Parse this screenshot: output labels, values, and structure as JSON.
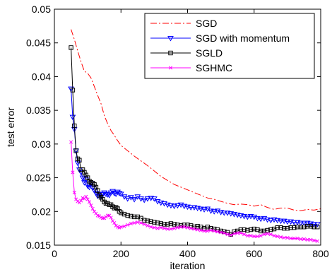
{
  "chart_data": {
    "type": "line",
    "title": "",
    "xlabel": "iteration",
    "ylabel": "test error",
    "xlim": [
      0,
      800
    ],
    "ylim": [
      0.015,
      0.05
    ],
    "xticks": [
      0,
      200,
      400,
      600,
      800
    ],
    "xtick_labels": [
      "0",
      "200",
      "400",
      "600",
      "800"
    ],
    "yticks": [
      0.015,
      0.02,
      0.025,
      0.03,
      0.035,
      0.04,
      0.045,
      0.05
    ],
    "ytick_labels": [
      "0.015",
      "0.02",
      "0.025",
      "0.03",
      "0.035",
      "0.04",
      "0.045",
      "0.05"
    ],
    "grid": false,
    "legend_position": "top-right",
    "series": [
      {
        "name": "SGD",
        "color": "#ff0000",
        "linestyle": "dashdot",
        "marker": "none",
        "x": [
          50,
          60,
          70,
          80,
          90,
          100,
          110,
          120,
          130,
          140,
          150,
          160,
          170,
          180,
          190,
          200,
          220,
          240,
          260,
          280,
          300,
          320,
          340,
          360,
          380,
          400,
          420,
          440,
          460,
          480,
          500,
          520,
          540,
          560,
          580,
          600,
          620,
          640,
          660,
          680,
          700,
          720,
          740,
          760,
          780,
          800
        ],
        "y": [
          0.047,
          0.0455,
          0.0438,
          0.0422,
          0.0408,
          0.0405,
          0.0398,
          0.0385,
          0.0372,
          0.036,
          0.0342,
          0.033,
          0.032,
          0.0313,
          0.0305,
          0.0298,
          0.029,
          0.0282,
          0.0275,
          0.0268,
          0.026,
          0.0252,
          0.0246,
          0.024,
          0.0236,
          0.0232,
          0.0228,
          0.0224,
          0.022,
          0.0218,
          0.0215,
          0.0212,
          0.021,
          0.0211,
          0.021,
          0.0208,
          0.021,
          0.0206,
          0.0203,
          0.0205,
          0.0205,
          0.0202,
          0.0201,
          0.0203,
          0.0202,
          0.0204
        ]
      },
      {
        "name": "SGD with momentum",
        "color": "#0000ff",
        "linestyle": "solid",
        "marker": "triangle-down",
        "x": [
          50,
          55,
          60,
          65,
          70,
          75,
          80,
          85,
          90,
          95,
          100,
          105,
          110,
          115,
          120,
          125,
          130,
          135,
          140,
          145,
          150,
          155,
          160,
          165,
          170,
          175,
          180,
          185,
          190,
          195,
          200,
          210,
          220,
          230,
          240,
          250,
          260,
          270,
          280,
          290,
          300,
          310,
          320,
          330,
          340,
          350,
          360,
          370,
          380,
          390,
          400,
          410,
          420,
          430,
          440,
          450,
          460,
          470,
          480,
          490,
          500,
          510,
          520,
          530,
          540,
          550,
          560,
          570,
          580,
          590,
          600,
          610,
          620,
          630,
          640,
          650,
          660,
          670,
          680,
          690,
          700,
          710,
          720,
          730,
          740,
          750,
          760,
          770,
          780,
          790
        ],
        "y": [
          0.0382,
          0.034,
          0.0322,
          0.029,
          0.0272,
          0.0262,
          0.0258,
          0.025,
          0.0243,
          0.0247,
          0.0238,
          0.0236,
          0.0242,
          0.0235,
          0.0231,
          0.0227,
          0.0223,
          0.0226,
          0.0222,
          0.0225,
          0.0228,
          0.0226,
          0.0225,
          0.0224,
          0.0228,
          0.023,
          0.0227,
          0.0226,
          0.0229,
          0.0227,
          0.0226,
          0.0222,
          0.0219,
          0.0221,
          0.0218,
          0.0222,
          0.0219,
          0.0217,
          0.0219,
          0.022,
          0.0219,
          0.0215,
          0.0213,
          0.0212,
          0.021,
          0.0209,
          0.0208,
          0.0209,
          0.021,
          0.0208,
          0.0207,
          0.0206,
          0.0206,
          0.0205,
          0.0204,
          0.0203,
          0.0204,
          0.0201,
          0.02,
          0.0201,
          0.0199,
          0.0198,
          0.0198,
          0.0197,
          0.0196,
          0.0195,
          0.0194,
          0.0193,
          0.0192,
          0.0193,
          0.0192,
          0.019,
          0.0189,
          0.019,
          0.0188,
          0.0187,
          0.0188,
          0.0187,
          0.0186,
          0.0186,
          0.0185,
          0.0185,
          0.0184,
          0.0184,
          0.0183,
          0.0183,
          0.0183,
          0.0182,
          0.0181,
          0.0181
        ]
      },
      {
        "name": "SGLD",
        "color": "#000000",
        "linestyle": "solid",
        "marker": "square",
        "x": [
          50,
          55,
          60,
          65,
          70,
          75,
          80,
          85,
          90,
          95,
          100,
          105,
          110,
          115,
          120,
          125,
          130,
          135,
          140,
          145,
          150,
          155,
          160,
          165,
          170,
          175,
          180,
          185,
          190,
          195,
          200,
          210,
          220,
          230,
          240,
          250,
          260,
          270,
          280,
          290,
          300,
          310,
          320,
          330,
          340,
          350,
          360,
          370,
          380,
          390,
          400,
          410,
          420,
          430,
          440,
          450,
          460,
          470,
          480,
          490,
          500,
          510,
          520,
          530,
          540,
          550,
          560,
          570,
          580,
          590,
          600,
          610,
          620,
          630,
          640,
          650,
          660,
          670,
          680,
          690,
          700,
          710,
          720,
          730,
          740,
          750,
          760,
          770,
          780,
          790
        ],
        "y": [
          0.0443,
          0.038,
          0.0327,
          0.029,
          0.0278,
          0.0276,
          0.0262,
          0.0262,
          0.0258,
          0.0254,
          0.025,
          0.0245,
          0.0243,
          0.0242,
          0.024,
          0.0236,
          0.0231,
          0.0224,
          0.0221,
          0.0218,
          0.0214,
          0.0212,
          0.0212,
          0.021,
          0.021,
          0.0207,
          0.0205,
          0.0206,
          0.0204,
          0.02,
          0.0198,
          0.0196,
          0.0194,
          0.0193,
          0.0192,
          0.0192,
          0.019,
          0.0187,
          0.0186,
          0.0185,
          0.0184,
          0.0183,
          0.0182,
          0.0181,
          0.0181,
          0.0182,
          0.0181,
          0.018,
          0.0179,
          0.018,
          0.018,
          0.0179,
          0.0177,
          0.0178,
          0.0177,
          0.0175,
          0.0177,
          0.0175,
          0.0174,
          0.0173,
          0.0171,
          0.017,
          0.0169,
          0.0166,
          0.017,
          0.0171,
          0.0173,
          0.0173,
          0.0172,
          0.0173,
          0.0174,
          0.0173,
          0.0171,
          0.0171,
          0.0172,
          0.0173,
          0.0174,
          0.0176,
          0.0176,
          0.0175,
          0.0175,
          0.0176,
          0.0176,
          0.0177,
          0.0177,
          0.0177,
          0.0178,
          0.0178,
          0.0177,
          0.0177
        ]
      },
      {
        "name": "SGHMC",
        "color": "#ff00ff",
        "linestyle": "solid",
        "marker": "x",
        "x": [
          50,
          55,
          60,
          65,
          70,
          75,
          80,
          85,
          90,
          95,
          100,
          105,
          110,
          115,
          120,
          125,
          130,
          135,
          140,
          145,
          150,
          155,
          160,
          165,
          170,
          175,
          180,
          185,
          190,
          195,
          200,
          210,
          220,
          230,
          240,
          250,
          260,
          270,
          280,
          290,
          300,
          310,
          320,
          330,
          340,
          350,
          360,
          370,
          380,
          390,
          400,
          410,
          420,
          430,
          440,
          450,
          460,
          470,
          480,
          490,
          500,
          510,
          520,
          530,
          540,
          550,
          560,
          570,
          580,
          590,
          600,
          610,
          620,
          630,
          640,
          650,
          660,
          670,
          680,
          690,
          700,
          710,
          720,
          730,
          740,
          750,
          760,
          770,
          780,
          790
        ],
        "y": [
          0.0303,
          0.0258,
          0.0228,
          0.0218,
          0.0215,
          0.0213,
          0.0216,
          0.022,
          0.0219,
          0.0222,
          0.0218,
          0.0214,
          0.0209,
          0.0204,
          0.02,
          0.0197,
          0.0194,
          0.0193,
          0.0191,
          0.019,
          0.019,
          0.0192,
          0.0194,
          0.0194,
          0.0191,
          0.0186,
          0.0183,
          0.0179,
          0.0177,
          0.0176,
          0.0177,
          0.0178,
          0.018,
          0.0182,
          0.0183,
          0.0184,
          0.0183,
          0.0181,
          0.0179,
          0.0177,
          0.0176,
          0.0175,
          0.0176,
          0.0175,
          0.0174,
          0.0174,
          0.0175,
          0.0176,
          0.0177,
          0.0177,
          0.0176,
          0.0175,
          0.0174,
          0.0173,
          0.0172,
          0.0171,
          0.0171,
          0.0172,
          0.0171,
          0.017,
          0.0169,
          0.0168,
          0.0166,
          0.0165,
          0.0167,
          0.0168,
          0.0168,
          0.0166,
          0.0164,
          0.0164,
          0.0163,
          0.0163,
          0.0164,
          0.0166,
          0.0167,
          0.0166,
          0.0164,
          0.0163,
          0.0162,
          0.0161,
          0.0161,
          0.016,
          0.016,
          0.016,
          0.0159,
          0.0159,
          0.0158,
          0.0158,
          0.0157,
          0.0156
        ]
      }
    ]
  }
}
